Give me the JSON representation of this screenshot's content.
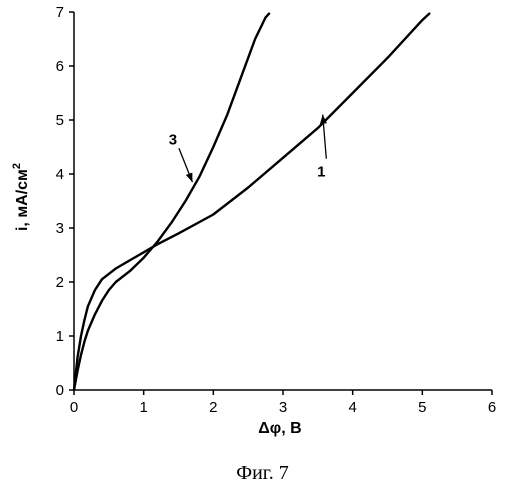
{
  "caption": "Фиг. 7",
  "chart_data": {
    "type": "line",
    "xlabel": "Δφ, В",
    "ylabel_main": "i, мА/см",
    "ylabel_sup": "2",
    "xlim": [
      0,
      6
    ],
    "ylim": [
      0,
      7
    ],
    "xticks": [
      "0",
      "1",
      "2",
      "3",
      "4",
      "5",
      "6"
    ],
    "yticks": [
      "0",
      "1",
      "2",
      "3",
      "4",
      "5",
      "6",
      "7"
    ],
    "grid": false,
    "series": [
      {
        "name": "1",
        "x": [
          0,
          0.05,
          0.1,
          0.15,
          0.2,
          0.3,
          0.4,
          0.5,
          0.6,
          0.8,
          1.0,
          1.2,
          1.5,
          2.0,
          2.5,
          3.0,
          3.5,
          4.0,
          4.5,
          5.0,
          5.1
        ],
        "y": [
          0,
          0.6,
          1.0,
          1.3,
          1.55,
          1.85,
          2.05,
          2.15,
          2.25,
          2.4,
          2.55,
          2.7,
          2.9,
          3.25,
          3.75,
          4.3,
          4.85,
          5.5,
          6.15,
          6.85,
          6.97
        ]
      },
      {
        "name": "3",
        "x": [
          0,
          0.05,
          0.1,
          0.15,
          0.2,
          0.3,
          0.4,
          0.5,
          0.6,
          0.8,
          1.0,
          1.2,
          1.4,
          1.6,
          1.8,
          2.0,
          2.2,
          2.4,
          2.6,
          2.75,
          2.8
        ],
        "y": [
          0,
          0.35,
          0.65,
          0.9,
          1.1,
          1.4,
          1.65,
          1.85,
          2.0,
          2.2,
          2.45,
          2.75,
          3.1,
          3.5,
          3.95,
          4.5,
          5.1,
          5.8,
          6.5,
          6.9,
          6.97
        ]
      }
    ],
    "annotations": [
      {
        "label": "3",
        "text_x": 1.42,
        "text_y": 4.55,
        "arrow_x": 1.7,
        "arrow_y": 3.85
      },
      {
        "label": "1",
        "text_x": 3.55,
        "text_y": 3.95,
        "arrow_x": 3.57,
        "arrow_y": 5.1
      }
    ]
  }
}
